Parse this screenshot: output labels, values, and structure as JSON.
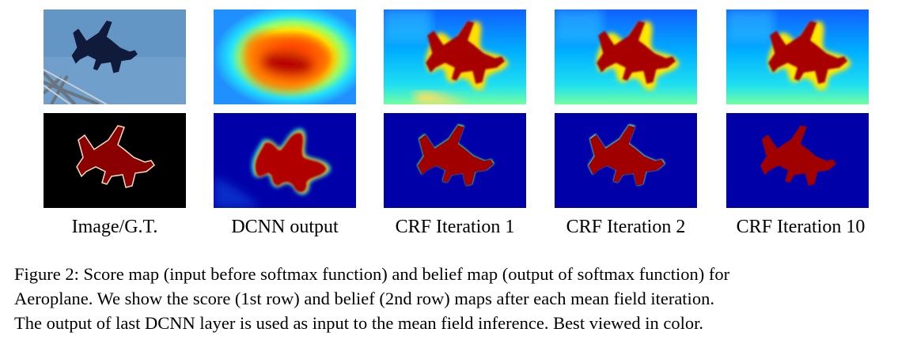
{
  "figure": {
    "column_labels": [
      "Image/G.T.",
      "DCNN output",
      "CRF Iteration 1",
      "CRF Iteration 2",
      "CRF Iteration 10"
    ],
    "rows": [
      "score map",
      "belief map"
    ],
    "caption": {
      "line1": "Figure 2: Score map (input before softmax function) and belief map (output of softmax function) for",
      "line2": "Aeroplane. We show the score (1st row) and belief (2nd row) maps after each mean field iteration.",
      "line3": "The output of last DCNN layer is used as input to the mean field inference. Best viewed in color."
    }
  },
  "colors": {
    "sky": "#6f9fca",
    "jet_dark_red": "#8b0000",
    "jet_blue": "#0000a8",
    "jet_cyan": "#00d8ff",
    "gt_background": "#000000"
  }
}
